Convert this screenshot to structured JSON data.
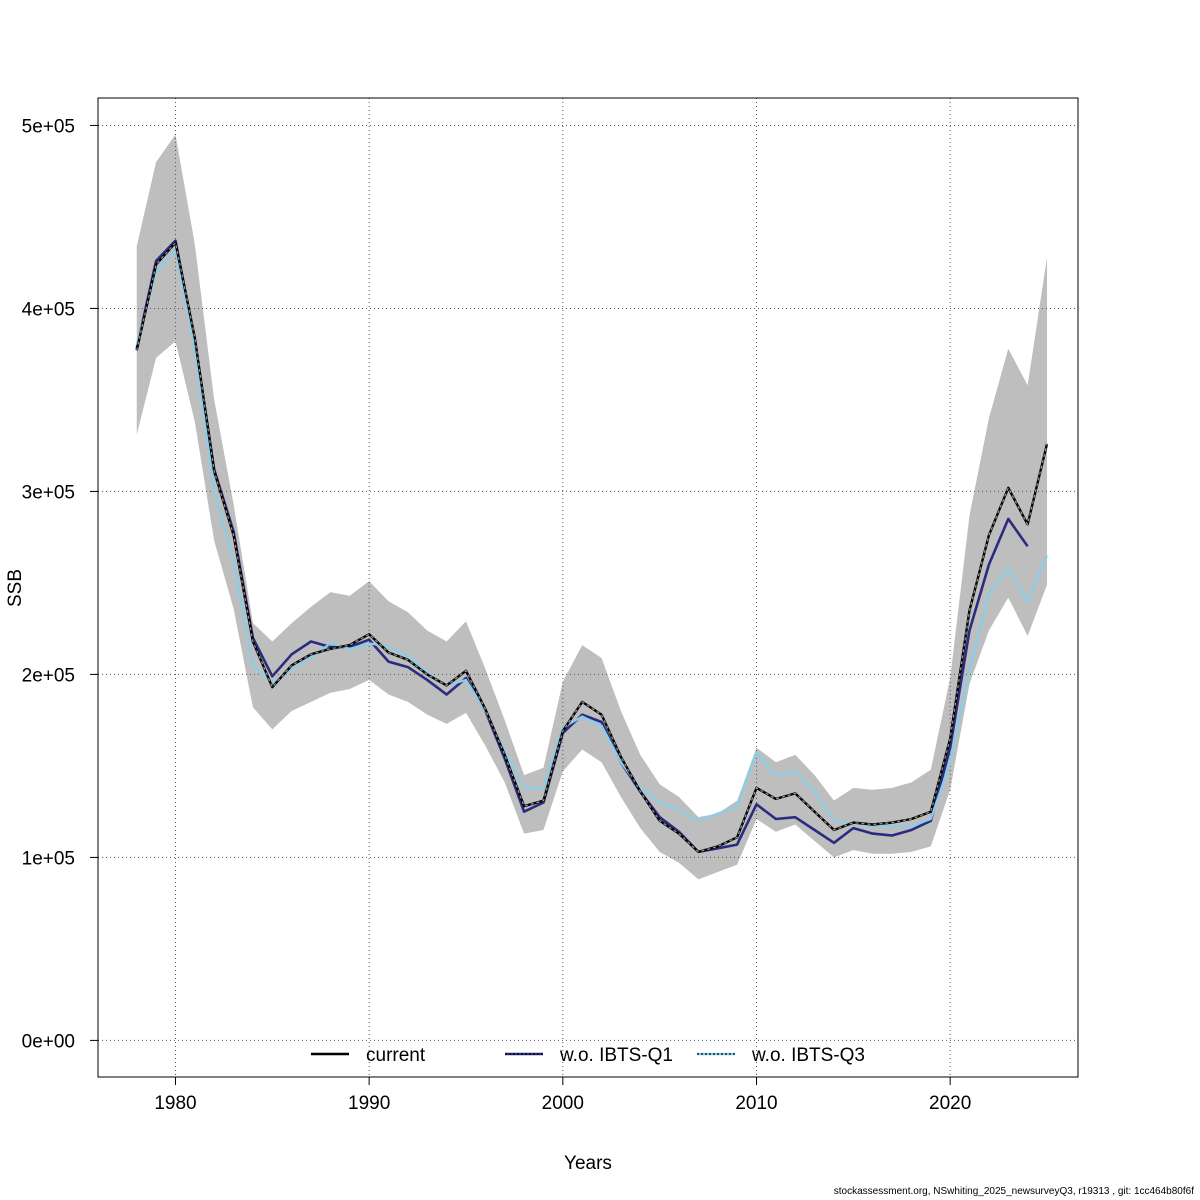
{
  "chart_data": {
    "type": "line",
    "xlabel": "Years",
    "ylabel": "SSB",
    "xlim": [
      1976,
      2026.6
    ],
    "ylim": [
      -20000,
      515000
    ],
    "x_ticks": [
      1980,
      1990,
      2000,
      2010,
      2020
    ],
    "x_tick_labels": [
      "1980",
      "1990",
      "2000",
      "2010",
      "2020"
    ],
    "y_ticks": [
      0,
      100000,
      200000,
      300000,
      400000,
      500000
    ],
    "y_tick_labels": [
      "0e+00",
      "1e+05",
      "2e+05",
      "3e+05",
      "4e+05",
      "5e+05"
    ],
    "grid": true,
    "legend_position": "bottom",
    "legend": [
      {
        "label": "current",
        "color": "#000000"
      },
      {
        "label": "w.o. IBTS-Q1",
        "color": "#2b2b80"
      },
      {
        "label": "w.o. IBTS-Q3",
        "color": "#87ceeb"
      }
    ],
    "band": {
      "color": "#bebebe",
      "x": [
        1978,
        1979,
        1980,
        1981,
        1982,
        1983,
        1984,
        1985,
        1986,
        1987,
        1988,
        1989,
        1990,
        1991,
        1992,
        1993,
        1994,
        1995,
        1996,
        1997,
        1998,
        1999,
        2000,
        2001,
        2002,
        2003,
        2004,
        2005,
        2006,
        2007,
        2008,
        2009,
        2010,
        2011,
        2012,
        2013,
        2014,
        2015,
        2016,
        2017,
        2018,
        2019,
        2020,
        2021,
        2022,
        2023,
        2024,
        2025
      ],
      "upper": [
        434000,
        480000,
        495000,
        435000,
        350000,
        293000,
        228000,
        218000,
        228000,
        237000,
        245000,
        243000,
        251000,
        240000,
        234000,
        224000,
        218000,
        229000,
        203000,
        175000,
        145000,
        149000,
        196000,
        216000,
        209000,
        180000,
        156000,
        140000,
        133000,
        122000,
        124000,
        131000,
        160000,
        152000,
        156000,
        145000,
        131000,
        138000,
        137000,
        138000,
        141000,
        148000,
        198000,
        287000,
        340000,
        378000,
        358000,
        428000
      ],
      "lower": [
        331000,
        373000,
        382000,
        338000,
        273000,
        236000,
        182000,
        170000,
        180000,
        185000,
        190000,
        192000,
        197000,
        189000,
        185000,
        178000,
        173000,
        179000,
        161000,
        141000,
        113000,
        115000,
        147000,
        159000,
        152000,
        133000,
        116000,
        103000,
        97000,
        88000,
        92000,
        96000,
        121000,
        114000,
        118000,
        109000,
        100000,
        104000,
        102000,
        102000,
        103000,
        106000,
        137000,
        195000,
        224000,
        242000,
        221000,
        249000
      ]
    },
    "series": [
      {
        "name": "current",
        "color": "#000000",
        "x": [
          1978,
          1979,
          1980,
          1981,
          1982,
          1983,
          1984,
          1985,
          1986,
          1987,
          1988,
          1989,
          1990,
          1991,
          1992,
          1993,
          1994,
          1995,
          1996,
          1997,
          1998,
          1999,
          2000,
          2001,
          2002,
          2003,
          2004,
          2005,
          2006,
          2007,
          2008,
          2009,
          2010,
          2011,
          2012,
          2013,
          2014,
          2015,
          2016,
          2017,
          2018,
          2019,
          2020,
          2021,
          2022,
          2023,
          2024,
          2025
        ],
        "y": [
          377000,
          424000,
          436000,
          384000,
          311000,
          276000,
          218000,
          193000,
          205000,
          211000,
          214000,
          216000,
          222000,
          212000,
          208000,
          200000,
          194000,
          202000,
          181000,
          156000,
          128000,
          131000,
          169000,
          185000,
          178000,
          155000,
          136000,
          120000,
          113000,
          103000,
          106000,
          111000,
          138000,
          132000,
          135000,
          125000,
          115000,
          119000,
          118000,
          119000,
          121000,
          125000,
          165000,
          235000,
          276000,
          302000,
          282000,
          326000
        ]
      },
      {
        "name": "w.o. IBTS-Q1",
        "color": "#2b2b80",
        "x": [
          1978,
          1979,
          1980,
          1981,
          1982,
          1983,
          1984,
          1985,
          1986,
          1987,
          1988,
          1989,
          1990,
          1991,
          1992,
          1993,
          1994,
          1995,
          1996,
          1997,
          1998,
          1999,
          2000,
          2001,
          2002,
          2003,
          2004,
          2005,
          2006,
          2007,
          2008,
          2009,
          2010,
          2011,
          2012,
          2013,
          2014,
          2015,
          2016,
          2017,
          2018,
          2019,
          2020,
          2021,
          2022,
          2023,
          2024
        ],
        "y": [
          378000,
          426000,
          437000,
          382000,
          312000,
          278000,
          220000,
          199000,
          211000,
          218000,
          215000,
          215000,
          219000,
          207000,
          204000,
          197000,
          189000,
          198000,
          180000,
          154000,
          125000,
          130000,
          168000,
          178000,
          174000,
          152000,
          136000,
          122000,
          114000,
          103000,
          105000,
          107000,
          129000,
          121000,
          122000,
          115000,
          108000,
          116000,
          113000,
          112000,
          115000,
          120000,
          160000,
          224000,
          260000,
          285000,
          270000
        ]
      },
      {
        "name": "w.o. IBTS-Q3",
        "color": "#87ceeb",
        "x": [
          1978,
          1979,
          1980,
          1981,
          1982,
          1983,
          1984,
          1985,
          1986,
          1987,
          1988,
          1989,
          1990,
          1991,
          1992,
          1993,
          1994,
          1995,
          1996,
          1997,
          1998,
          1999,
          2000,
          2001,
          2002,
          2003,
          2004,
          2005,
          2006,
          2007,
          2008,
          2009,
          2010,
          2011,
          2012,
          2013,
          2014,
          2015,
          2016,
          2017,
          2018,
          2019,
          2020,
          2021,
          2022,
          2023,
          2024,
          2025
        ],
        "y": [
          380000,
          420000,
          432000,
          378000,
          300000,
          262000,
          205000,
          195000,
          203000,
          209000,
          217000,
          214000,
          217000,
          215000,
          210000,
          201000,
          194000,
          197000,
          180000,
          158000,
          138000,
          138000,
          171000,
          177000,
          172000,
          152000,
          138000,
          130000,
          126000,
          120000,
          124000,
          128000,
          157000,
          145000,
          147000,
          136000,
          120000,
          119000,
          117000,
          117000,
          117000,
          121000,
          152000,
          203000,
          244000,
          258000,
          240000,
          265000
        ]
      }
    ]
  },
  "footer": "stockassessment.org, NSwhiting_2025_newsurveyQ3, r19313 , git: 1cc464b80f6f"
}
